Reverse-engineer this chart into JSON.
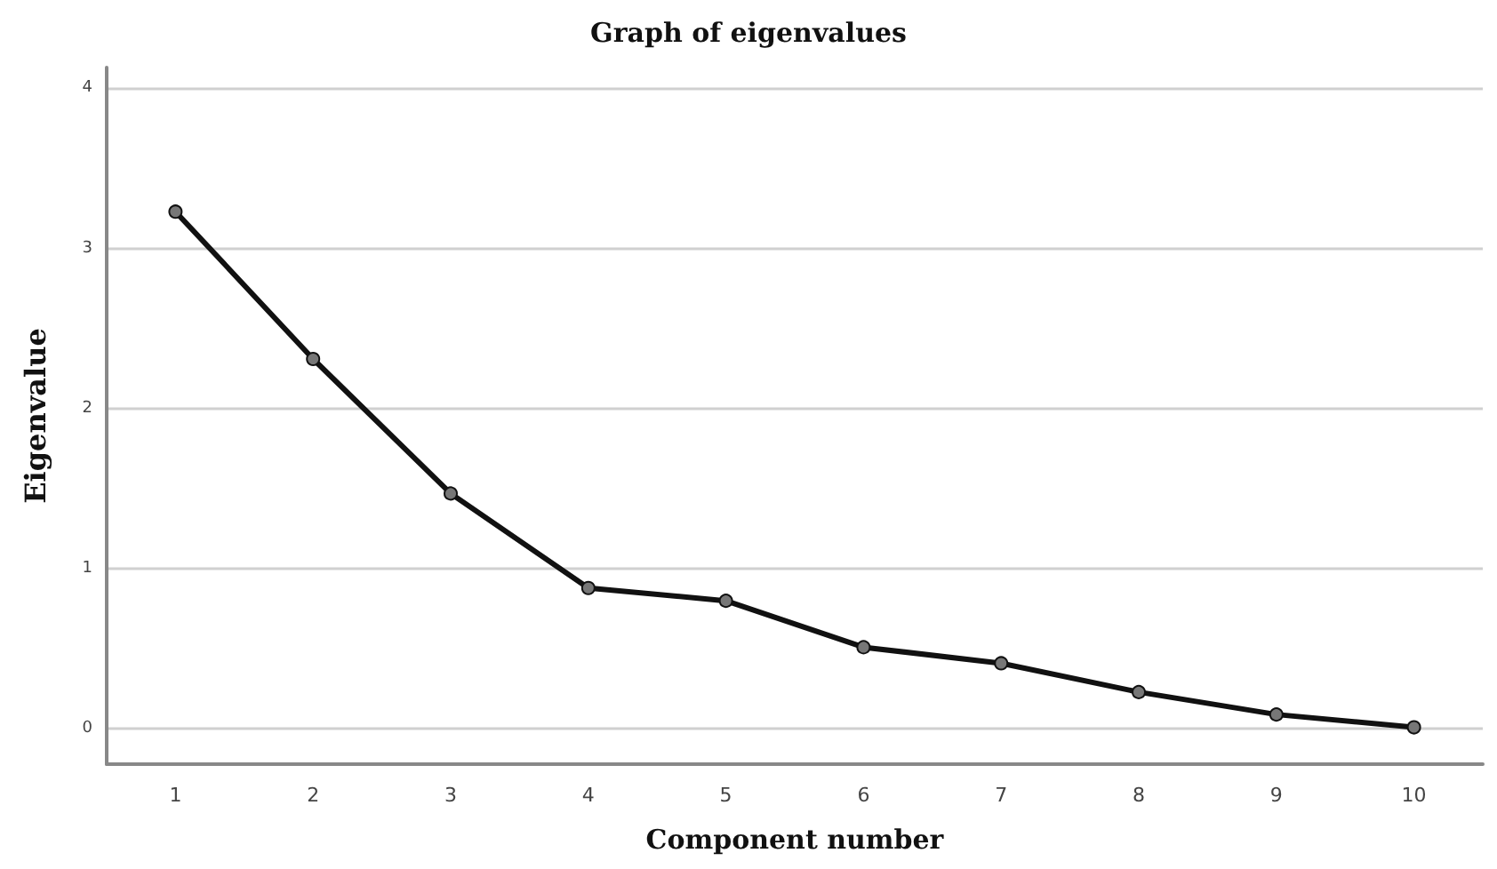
{
  "chart_data": {
    "type": "line",
    "title": "Graph of eigenvalues",
    "xlabel": "Component number",
    "ylabel": "Eigenvalue",
    "categories": [
      "1",
      "2",
      "3",
      "4",
      "5",
      "6",
      "7",
      "8",
      "9",
      "10"
    ],
    "series": [
      {
        "color": "#111111",
        "values": [
          3.23,
          2.31,
          1.47,
          0.88,
          0.8,
          0.51,
          0.41,
          0.23,
          0.09,
          0.01
        ]
      }
    ],
    "ylim": [
      -0.22,
      4.13
    ],
    "yticks": [
      0,
      1,
      2,
      3,
      4
    ],
    "grid": "y",
    "marker": "circle",
    "line_style": "solid"
  }
}
